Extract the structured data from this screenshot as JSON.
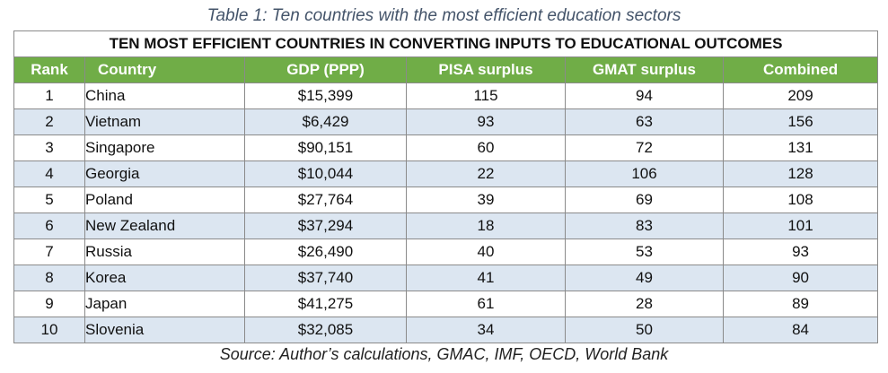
{
  "caption": "Table 1: Ten countries with the most efficient education sectors",
  "table": {
    "title": "TEN MOST EFFICIENT COUNTRIES IN CONVERTING INPUTS TO EDUCATIONAL OUTCOMES",
    "headers": [
      "Rank",
      "Country",
      "GDP (PPP)",
      "PISA surplus",
      "GMAT surplus",
      "Combined"
    ],
    "rows": [
      [
        "1",
        "China",
        "$15,399",
        "115",
        "94",
        "209"
      ],
      [
        "2",
        "Vietnam",
        "$6,429",
        "93",
        "63",
        "156"
      ],
      [
        "3",
        "Singapore",
        "$90,151",
        "60",
        "72",
        "131"
      ],
      [
        "4",
        "Georgia",
        "$10,044",
        "22",
        "106",
        "128"
      ],
      [
        "5",
        "Poland",
        "$27,764",
        "39",
        "69",
        "108"
      ],
      [
        "6",
        "New Zealand",
        "$37,294",
        "18",
        "83",
        "101"
      ],
      [
        "7",
        "Russia",
        "$26,490",
        "40",
        "53",
        "93"
      ],
      [
        "8",
        "Korea",
        "$37,740",
        "41",
        "49",
        "90"
      ],
      [
        "9",
        "Japan",
        "$41,275",
        "61",
        "28",
        "89"
      ],
      [
        "10",
        "Slovenia",
        "$32,085",
        "34",
        "50",
        "84"
      ]
    ]
  },
  "source": "Source: Author’s calculations, GMAC, IMF, OECD, World Bank",
  "colors": {
    "header_bg": "#70ad47",
    "alt_row_bg": "#dce6f1",
    "caption_text": "#44546a"
  }
}
